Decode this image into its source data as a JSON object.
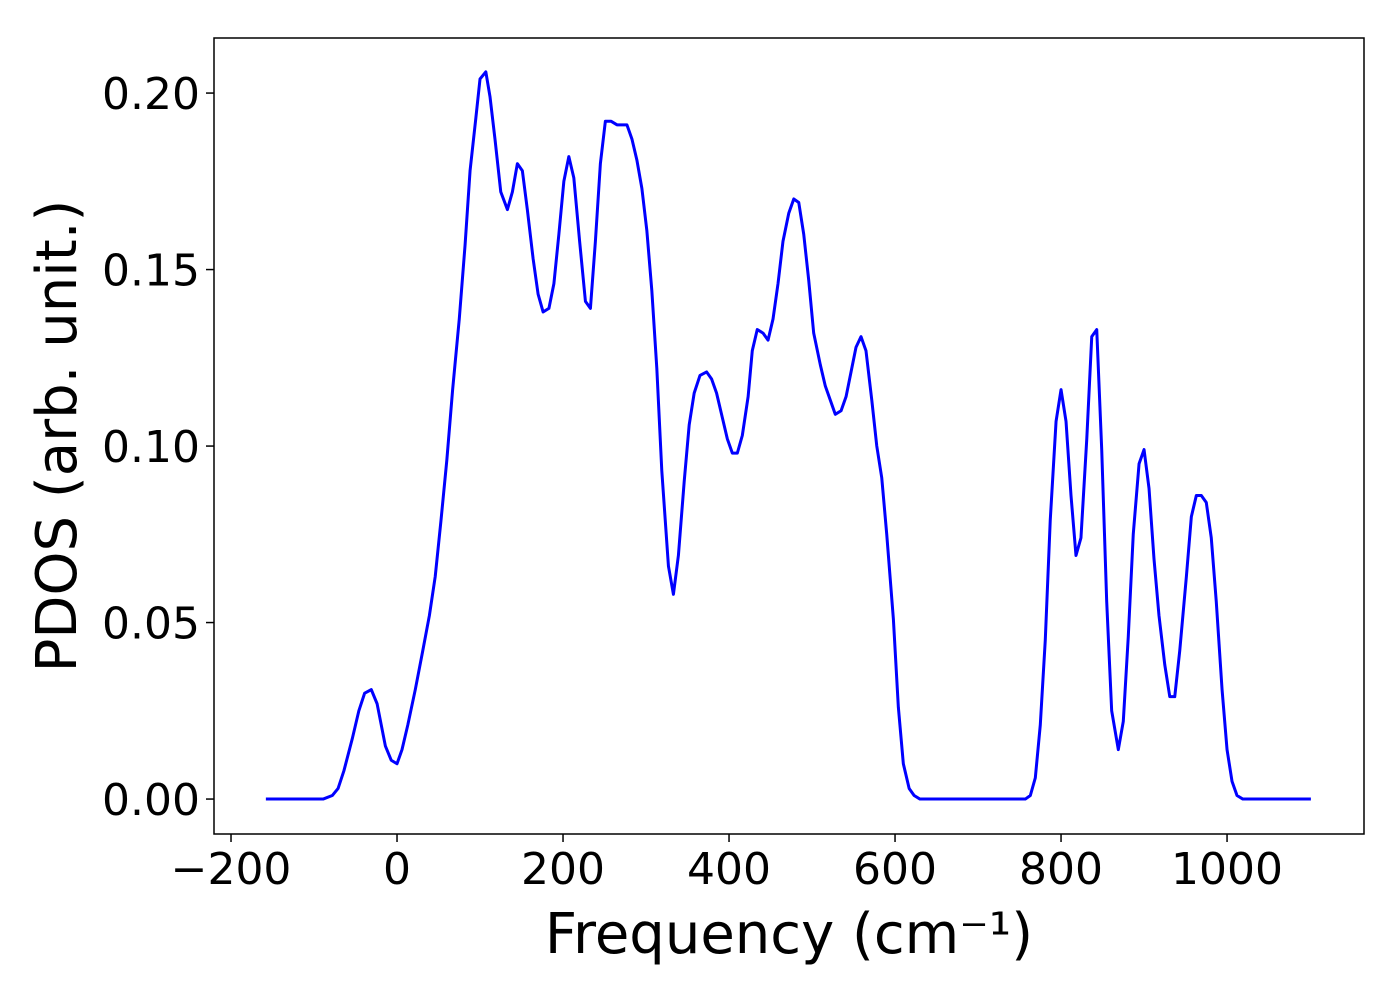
{
  "chart_data": {
    "type": "line",
    "xlabel": "Frequency (cm⁻¹)",
    "ylabel": "PDOS (arb. unit.)",
    "color": "#0000ff",
    "x": [
      -158,
      -89,
      -78,
      -71,
      -64,
      -54,
      -46,
      -39,
      -31,
      -24,
      -14,
      -7,
      0,
      6,
      13,
      22,
      31,
      39,
      46,
      53,
      60,
      67,
      75,
      82,
      88,
      95,
      100,
      107,
      112,
      118,
      125,
      133,
      139,
      145,
      151,
      157,
      164,
      170,
      176,
      183,
      189,
      195,
      201,
      207,
      213,
      220,
      227,
      233,
      239,
      245,
      251,
      258,
      265,
      277,
      283,
      289,
      295,
      301,
      307,
      313,
      319,
      327,
      333,
      339,
      346,
      352,
      358,
      365,
      373,
      379,
      385,
      391,
      398,
      404,
      410,
      416,
      423,
      428,
      434,
      441,
      447,
      453,
      459,
      465,
      472,
      478,
      484,
      490,
      496,
      502,
      510,
      516,
      522,
      528,
      535,
      541,
      547,
      553,
      559,
      565,
      572,
      578,
      584,
      590,
      598,
      604,
      610,
      617,
      623,
      630,
      757,
      763,
      769,
      775,
      781,
      787,
      794,
      800,
      806,
      812,
      818,
      824,
      831,
      837,
      843,
      849,
      855,
      861,
      869,
      875,
      881,
      887,
      894,
      900,
      906,
      912,
      918,
      925,
      931,
      937,
      943,
      951,
      957,
      963,
      969,
      975,
      981,
      987,
      994,
      1000,
      1006,
      1012,
      1019,
      1101
    ],
    "values": [
      0,
      0,
      0.001,
      0.003,
      0.008,
      0.017,
      0.025,
      0.03,
      0.031,
      0.027,
      0.015,
      0.011,
      0.01,
      0.014,
      0.021,
      0.031,
      0.042,
      0.052,
      0.063,
      0.079,
      0.096,
      0.116,
      0.136,
      0.157,
      0.178,
      0.193,
      0.204,
      0.206,
      0.199,
      0.187,
      0.172,
      0.167,
      0.172,
      0.18,
      0.178,
      0.167,
      0.153,
      0.143,
      0.138,
      0.139,
      0.146,
      0.16,
      0.175,
      0.182,
      0.176,
      0.158,
      0.141,
      0.139,
      0.158,
      0.18,
      0.192,
      0.192,
      0.191,
      0.191,
      0.187,
      0.181,
      0.173,
      0.161,
      0.144,
      0.122,
      0.093,
      0.066,
      0.058,
      0.069,
      0.09,
      0.106,
      0.115,
      0.12,
      0.121,
      0.119,
      0.115,
      0.109,
      0.102,
      0.098,
      0.098,
      0.103,
      0.114,
      0.127,
      0.133,
      0.132,
      0.13,
      0.136,
      0.146,
      0.158,
      0.166,
      0.17,
      0.169,
      0.16,
      0.147,
      0.132,
      0.123,
      0.117,
      0.113,
      0.109,
      0.11,
      0.114,
      0.121,
      0.128,
      0.131,
      0.127,
      0.113,
      0.1,
      0.091,
      0.075,
      0.051,
      0.026,
      0.01,
      0.003,
      0.001,
      0,
      0,
      0.001,
      0.006,
      0.021,
      0.045,
      0.079,
      0.107,
      0.116,
      0.107,
      0.086,
      0.069,
      0.074,
      0.102,
      0.131,
      0.133,
      0.099,
      0.056,
      0.025,
      0.014,
      0.022,
      0.046,
      0.075,
      0.095,
      0.099,
      0.088,
      0.068,
      0.052,
      0.038,
      0.029,
      0.029,
      0.042,
      0.063,
      0.08,
      0.086,
      0.086,
      0.084,
      0.074,
      0.056,
      0.031,
      0.014,
      0.005,
      0.001,
      0,
      0
    ],
    "xlim": [
      -220.5,
      1165
    ],
    "ylim": [
      -0.0099,
      0.2156
    ],
    "xticks": [
      {
        "value": -200,
        "label": "−200"
      },
      0,
      200,
      400,
      600,
      800,
      1000
    ],
    "yticks": [
      {
        "value": 0,
        "label": "0.00"
      },
      {
        "value": 0.05,
        "label": "0.05"
      },
      {
        "value": 0.1,
        "label": "0.10"
      },
      {
        "value": 0.15,
        "label": "0.15"
      },
      {
        "value": 0.2,
        "label": "0.20"
      }
    ],
    "grid": false
  }
}
